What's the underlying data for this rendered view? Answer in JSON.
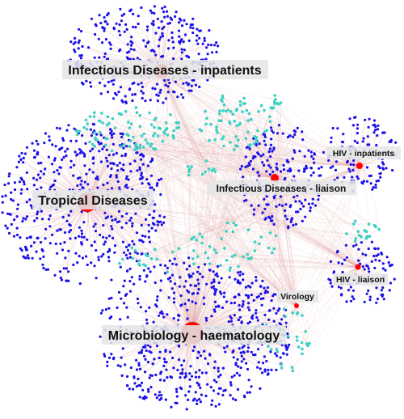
{
  "colors": {
    "staff_node": "#1a10e8",
    "patient_node": "#3ad1c4",
    "hub_node": "#ff0000",
    "edge": "#e0a0a0",
    "label_bg": "#e6e6e6"
  },
  "hubs": [
    {
      "id": "id_inpatients",
      "label": "Infectious Diseases - inpatients"
    },
    {
      "id": "tropical",
      "label": "Tropical Diseases"
    },
    {
      "id": "id_liaison",
      "label": "Infectious Diseases - liaison"
    },
    {
      "id": "hiv_inpatients",
      "label": "HIV - inpatients"
    },
    {
      "id": "hiv_liaison",
      "label": "HIV - liaison"
    },
    {
      "id": "virology",
      "label": "Virology"
    },
    {
      "id": "micro_haem",
      "label": "Microbiology - haematology"
    }
  ]
}
